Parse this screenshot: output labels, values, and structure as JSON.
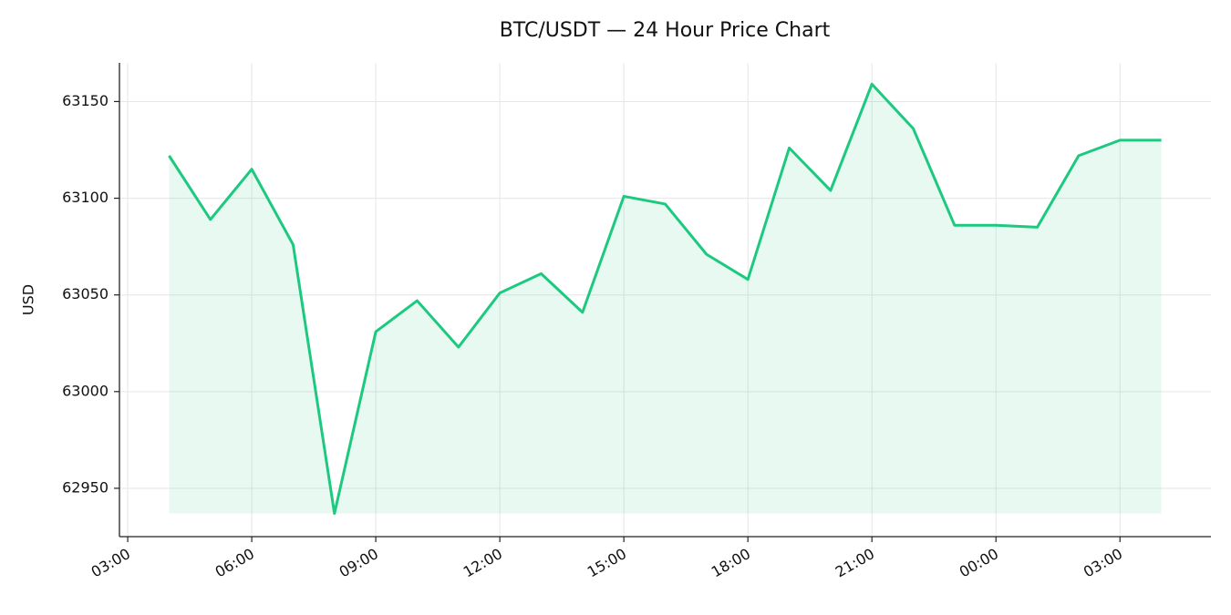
{
  "chart_data": {
    "type": "line",
    "title": "BTC/USDT — 24 Hour Price Chart",
    "y_label": "USD",
    "x": [
      4,
      5,
      6,
      7,
      8,
      9,
      10,
      11,
      12,
      13,
      14,
      15,
      16,
      17,
      18,
      19,
      20,
      21,
      22,
      23,
      24,
      25,
      26,
      27,
      28
    ],
    "series": [
      {
        "name": "BTC/USDT",
        "color": "#1dc97f",
        "values": [
          63122,
          63089,
          63115,
          63076,
          62937,
          63031,
          63047,
          63023,
          63051,
          63061,
          63041,
          63101,
          63097,
          63071,
          63058,
          63126,
          63104,
          63159,
          63136,
          63086,
          63086,
          63085,
          63122,
          63130,
          63130
        ]
      }
    ],
    "xlim": [
      2.8,
      29.2
    ],
    "xticks": [
      {
        "value": 3,
        "label": "03:00"
      },
      {
        "value": 6,
        "label": "06:00"
      },
      {
        "value": 9,
        "label": "09:00"
      },
      {
        "value": 12,
        "label": "12:00"
      },
      {
        "value": 15,
        "label": "15:00"
      },
      {
        "value": 18,
        "label": "18:00"
      },
      {
        "value": 21,
        "label": "21:00"
      },
      {
        "value": 24,
        "label": "00:00"
      },
      {
        "value": 27,
        "label": "03:00"
      }
    ],
    "ylim": [
      62925,
      63170
    ],
    "yticks": [
      62950,
      63000,
      63050,
      63100,
      63150
    ],
    "grid": true,
    "fill": true
  }
}
